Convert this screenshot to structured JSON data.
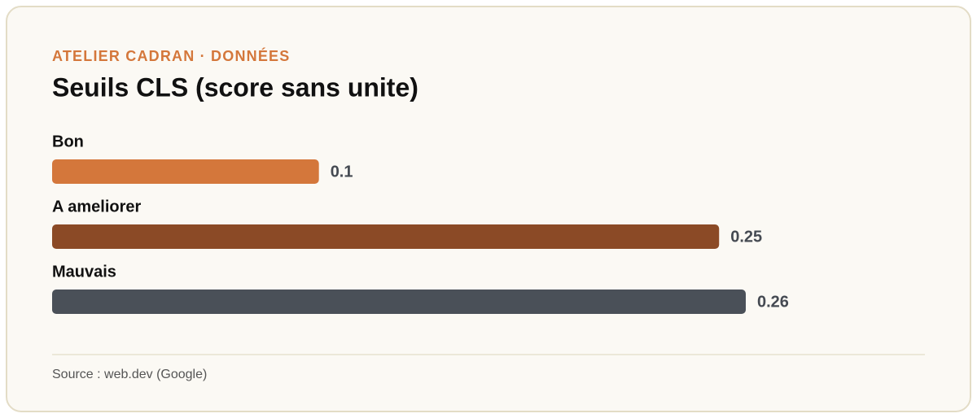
{
  "chart_data": {
    "type": "bar",
    "orientation": "horizontal",
    "eyebrow": "ATELIER CADRAN · DONNÉES",
    "title": "Seuils CLS (score sans unite)",
    "categories": [
      "Bon",
      "A ameliorer",
      "Mauvais"
    ],
    "values": [
      0.1,
      0.25,
      0.26
    ],
    "colors": [
      "#d4773b",
      "#8b4a26",
      "#4a5058"
    ],
    "source": "Source : web.dev (Google)"
  }
}
